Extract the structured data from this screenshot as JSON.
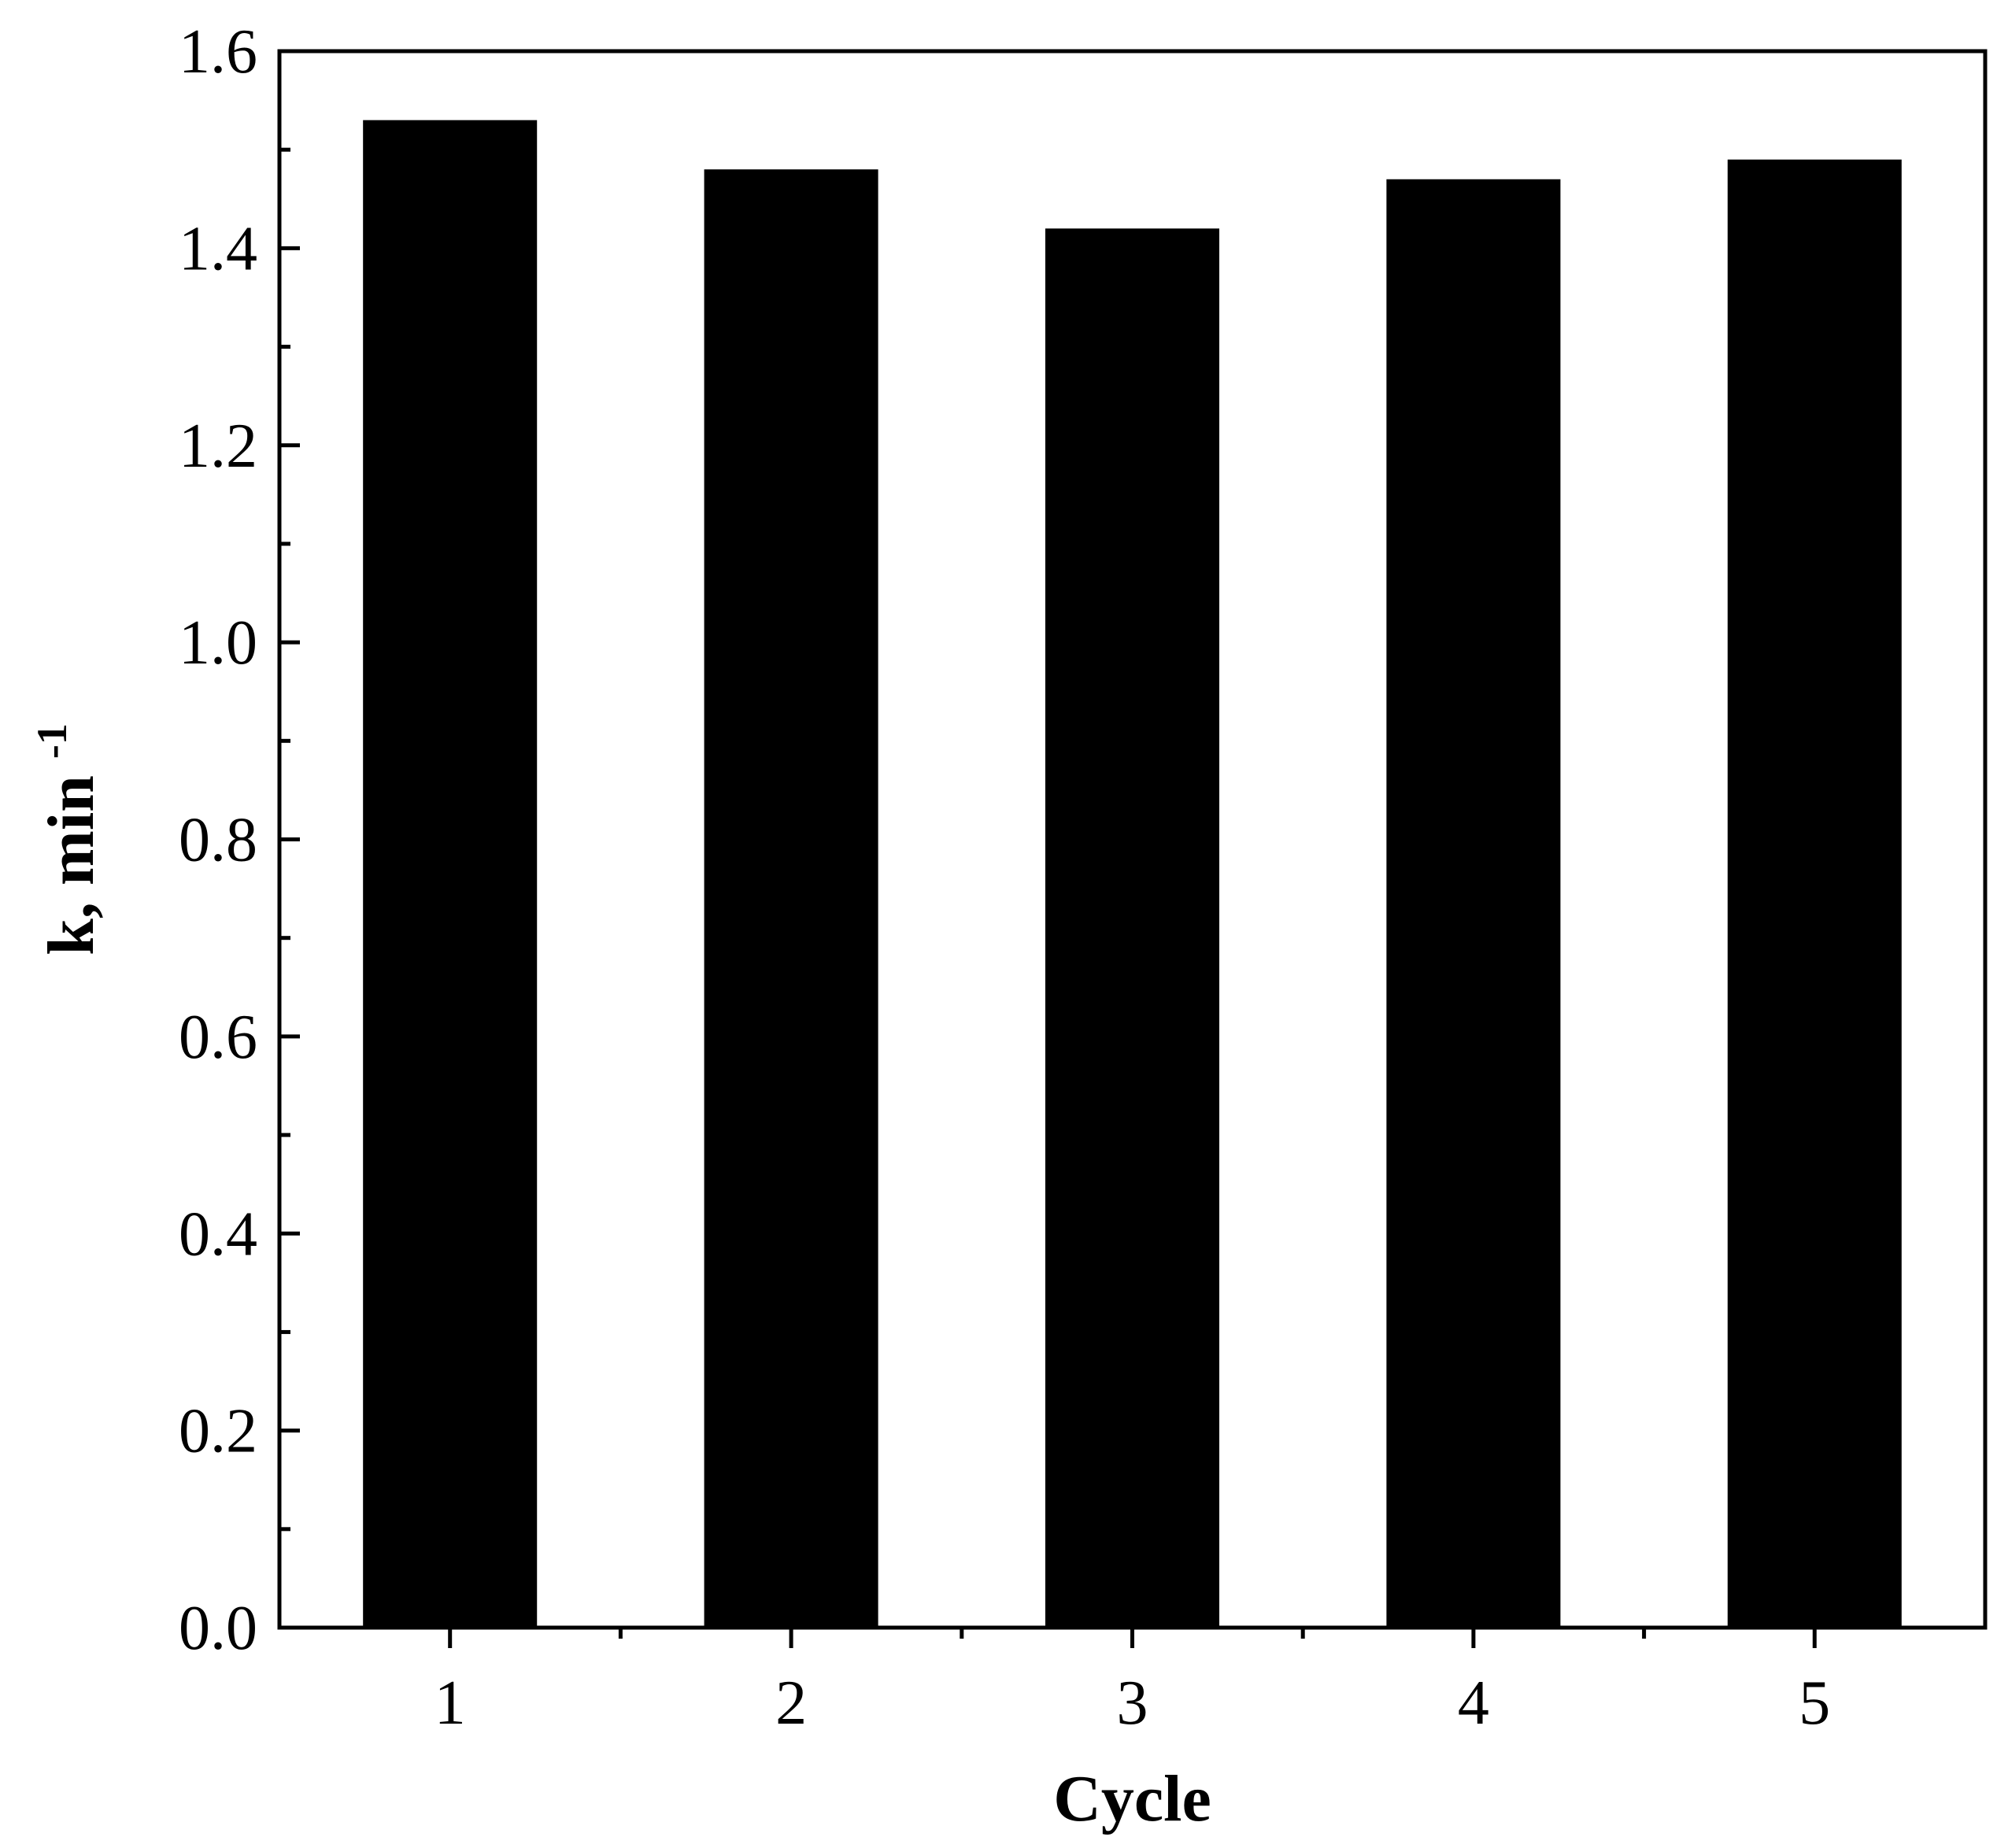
{
  "chart_data": {
    "type": "bar",
    "categories": [
      "1",
      "2",
      "3",
      "4",
      "5"
    ],
    "values": [
      1.53,
      1.48,
      1.42,
      1.47,
      1.49
    ],
    "xlabel": "Cycle",
    "ylabel": {
      "base": "k, min",
      "superscript": "-1"
    },
    "ylim": [
      0,
      1.6
    ],
    "yticks": [
      "0.0",
      "0.2",
      "0.4",
      "0.6",
      "0.8",
      "1.0",
      "1.2",
      "1.4",
      "1.6"
    ],
    "grid": false,
    "legend": "none",
    "colors": {
      "bar": "#000000",
      "axis": "#000000",
      "background": "#ffffff"
    }
  }
}
